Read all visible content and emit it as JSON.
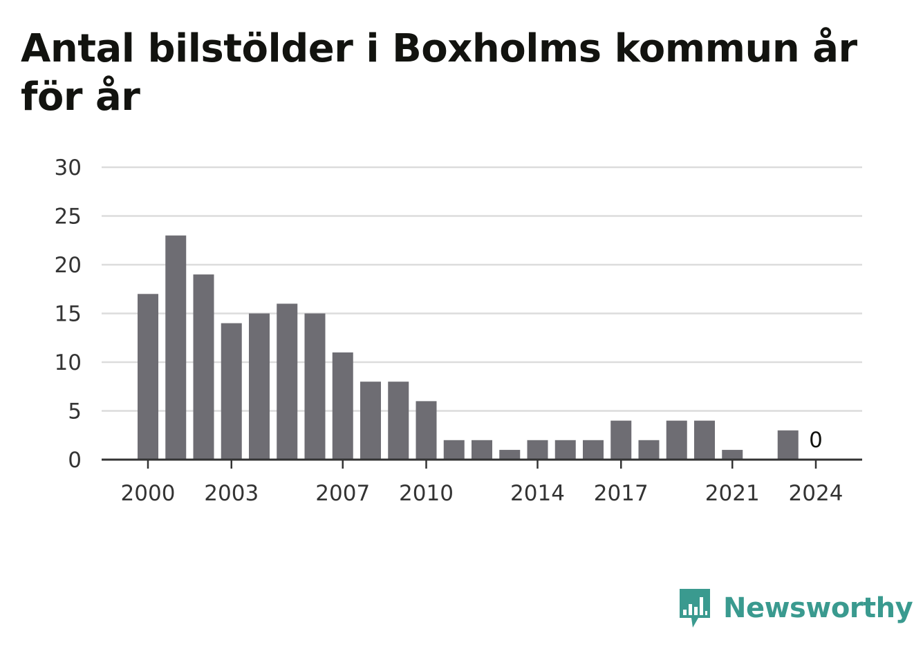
{
  "title": "Antal bilstölder i Boxholms kommun år för år",
  "brand": {
    "name": "Newsworthy",
    "logo_icon": "newsworthy-bar-chart-icon",
    "color": "#3a9a8f"
  },
  "colors": {
    "bar": "#6e6d73",
    "grid": "#dcdcdc",
    "axis": "#333333",
    "title": "#12130f"
  },
  "chart_data": {
    "type": "bar",
    "categories": [
      2000,
      2001,
      2002,
      2003,
      2004,
      2005,
      2006,
      2007,
      2008,
      2009,
      2010,
      2011,
      2012,
      2013,
      2014,
      2015,
      2016,
      2017,
      2018,
      2019,
      2020,
      2021,
      2022,
      2023,
      2024
    ],
    "values": [
      17,
      23,
      19,
      14,
      15,
      16,
      15,
      11,
      8,
      8,
      6,
      2,
      2,
      1,
      2,
      2,
      2,
      4,
      2,
      4,
      4,
      1,
      0,
      3,
      0
    ],
    "xticks": [
      "2000",
      "2003",
      "2007",
      "2010",
      "2014",
      "2017",
      "2021",
      "2024"
    ],
    "yticks": [
      0,
      5,
      10,
      15,
      20,
      25,
      30
    ],
    "ylim": [
      0,
      30
    ],
    "grid": true,
    "value_labels": [
      {
        "category": 2024,
        "text": "0"
      }
    ],
    "xlabel": "",
    "ylabel": ""
  }
}
